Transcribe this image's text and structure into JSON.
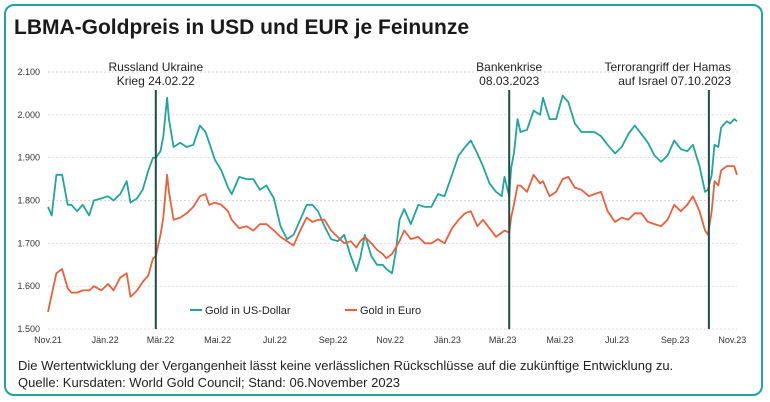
{
  "title": "LBMA-Goldpreis in USD und EUR je Feinunze",
  "footnote": "Die Wertentwicklung der Vergangenheit lässt keine verlässlichen Rückschlüsse auf die zukünftige Entwicklung zu.",
  "source": "Quelle: Kursdaten: World Gold Council; Stand: 06.November 2023",
  "colors": {
    "border": "#1fa59b",
    "usd": "#1fa59b",
    "eur": "#e8603c",
    "event_line": "#1e4d44",
    "grid": "#cccccc"
  },
  "chart_data": {
    "type": "line",
    "title": "LBMA-Goldpreis in USD und EUR je Feinunze",
    "xlabel": "",
    "ylabel": "",
    "ylim": [
      1500,
      2100
    ],
    "yticks": [
      "1.500",
      "1.600",
      "1.700",
      "1.800",
      "1.900",
      "2.000",
      "2.100"
    ],
    "ytick_values": [
      1500,
      1600,
      1700,
      1800,
      1900,
      2000,
      2100
    ],
    "xlim": [
      "2021-11-01",
      "2023-11-06"
    ],
    "xticks": [
      "Nov.21",
      "Jän.22",
      "Mär.22",
      "Mai.22",
      "Jul.22",
      "Sep.22",
      "Nov.22",
      "Jän.23",
      "Mär.23",
      "Mai.23",
      "Jul.23",
      "Sep.23",
      "Nov.23"
    ],
    "xtick_dates": [
      "2021-11-01",
      "2022-01-01",
      "2022-03-01",
      "2022-05-01",
      "2022-07-01",
      "2022-09-01",
      "2022-11-01",
      "2023-01-01",
      "2023-03-01",
      "2023-05-01",
      "2023-07-01",
      "2023-09-01",
      "2023-11-01"
    ],
    "grid": "horizontal",
    "legend": "bottom-center",
    "events": [
      {
        "date": "2022-02-24",
        "label_line1": "Russland Ukraine",
        "label_line2": "Krieg 24.02.22",
        "align": "center"
      },
      {
        "date": "2023-03-08",
        "label_line1": "Bankenkrise",
        "label_line2": "08.03.2023",
        "align": "center"
      },
      {
        "date": "2023-10-07",
        "label_line1": "Terrorangriff der Hamas",
        "label_line2": "auf Israel 07.10.2023",
        "align": "end"
      }
    ],
    "series": [
      {
        "name": "Gold in US-Dollar",
        "x": [
          "2021-11-01",
          "2021-11-05",
          "2021-11-10",
          "2021-11-16",
          "2021-11-22",
          "2021-11-26",
          "2021-12-02",
          "2021-12-08",
          "2021-12-15",
          "2021-12-20",
          "2021-12-28",
          "2022-01-04",
          "2022-01-10",
          "2022-01-17",
          "2022-01-24",
          "2022-01-28",
          "2022-02-04",
          "2022-02-10",
          "2022-02-16",
          "2022-02-21",
          "2022-02-24",
          "2022-03-01",
          "2022-03-04",
          "2022-03-08",
          "2022-03-10",
          "2022-03-15",
          "2022-03-22",
          "2022-03-29",
          "2022-04-05",
          "2022-04-12",
          "2022-04-18",
          "2022-04-22",
          "2022-04-28",
          "2022-05-05",
          "2022-05-12",
          "2022-05-16",
          "2022-05-24",
          "2022-06-01",
          "2022-06-08",
          "2022-06-15",
          "2022-06-22",
          "2022-06-30",
          "2022-07-07",
          "2022-07-14",
          "2022-07-21",
          "2022-07-28",
          "2022-08-04",
          "2022-08-10",
          "2022-08-16",
          "2022-08-23",
          "2022-08-30",
          "2022-09-06",
          "2022-09-13",
          "2022-09-20",
          "2022-09-26",
          "2022-09-30",
          "2022-10-05",
          "2022-10-12",
          "2022-10-18",
          "2022-10-24",
          "2022-10-28",
          "2022-11-03",
          "2022-11-07",
          "2022-11-11",
          "2022-11-16",
          "2022-11-23",
          "2022-12-01",
          "2022-12-08",
          "2022-12-15",
          "2022-12-22",
          "2022-12-29",
          "2023-01-06",
          "2023-01-13",
          "2023-01-20",
          "2023-01-26",
          "2023-02-02",
          "2023-02-08",
          "2023-02-15",
          "2023-02-22",
          "2023-02-28",
          "2023-03-03",
          "2023-03-08",
          "2023-03-10",
          "2023-03-13",
          "2023-03-17",
          "2023-03-20",
          "2023-03-27",
          "2023-04-03",
          "2023-04-10",
          "2023-04-13",
          "2023-04-20",
          "2023-04-27",
          "2023-05-04",
          "2023-05-10",
          "2023-05-17",
          "2023-05-24",
          "2023-06-01",
          "2023-06-07",
          "2023-06-14",
          "2023-06-21",
          "2023-06-29",
          "2023-07-06",
          "2023-07-13",
          "2023-07-20",
          "2023-07-27",
          "2023-08-03",
          "2023-08-10",
          "2023-08-17",
          "2023-08-24",
          "2023-08-31",
          "2023-09-07",
          "2023-09-14",
          "2023-09-20",
          "2023-09-27",
          "2023-10-03",
          "2023-10-06",
          "2023-10-10",
          "2023-10-13",
          "2023-10-17",
          "2023-10-20",
          "2023-10-26",
          "2023-10-30",
          "2023-11-03",
          "2023-11-06"
        ],
        "values": [
          1785,
          1765,
          1860,
          1860,
          1790,
          1790,
          1775,
          1790,
          1765,
          1800,
          1805,
          1810,
          1800,
          1815,
          1845,
          1795,
          1805,
          1825,
          1870,
          1900,
          1900,
          1915,
          1950,
          2040,
          1990,
          1925,
          1935,
          1925,
          1930,
          1975,
          1960,
          1935,
          1895,
          1870,
          1830,
          1815,
          1855,
          1850,
          1850,
          1825,
          1835,
          1805,
          1740,
          1710,
          1720,
          1755,
          1790,
          1790,
          1775,
          1740,
          1710,
          1705,
          1720,
          1670,
          1635,
          1665,
          1720,
          1670,
          1650,
          1650,
          1640,
          1630,
          1680,
          1755,
          1780,
          1745,
          1790,
          1785,
          1785,
          1815,
          1810,
          1860,
          1905,
          1925,
          1940,
          1910,
          1880,
          1840,
          1820,
          1810,
          1855,
          1810,
          1875,
          1910,
          1990,
          1960,
          1965,
          2010,
          2000,
          2040,
          1990,
          1990,
          2045,
          2030,
          1980,
          1960,
          1960,
          1960,
          1950,
          1930,
          1910,
          1925,
          1955,
          1975,
          1955,
          1935,
          1905,
          1890,
          1905,
          1940,
          1920,
          1915,
          1930,
          1880,
          1820,
          1825,
          1860,
          1930,
          1925,
          1970,
          1985,
          1980,
          1990,
          1985
        ]
      },
      {
        "name": "Gold in Euro",
        "x": [
          "2021-11-01",
          "2021-11-05",
          "2021-11-10",
          "2021-11-16",
          "2021-11-22",
          "2021-11-26",
          "2021-12-02",
          "2021-12-08",
          "2021-12-15",
          "2021-12-20",
          "2021-12-28",
          "2022-01-04",
          "2022-01-10",
          "2022-01-17",
          "2022-01-24",
          "2022-01-28",
          "2022-02-04",
          "2022-02-10",
          "2022-02-16",
          "2022-02-21",
          "2022-02-24",
          "2022-03-01",
          "2022-03-04",
          "2022-03-08",
          "2022-03-10",
          "2022-03-15",
          "2022-03-22",
          "2022-03-29",
          "2022-04-05",
          "2022-04-12",
          "2022-04-18",
          "2022-04-22",
          "2022-04-28",
          "2022-05-05",
          "2022-05-12",
          "2022-05-16",
          "2022-05-24",
          "2022-06-01",
          "2022-06-08",
          "2022-06-15",
          "2022-06-22",
          "2022-06-30",
          "2022-07-07",
          "2022-07-14",
          "2022-07-21",
          "2022-07-28",
          "2022-08-04",
          "2022-08-10",
          "2022-08-16",
          "2022-08-23",
          "2022-08-30",
          "2022-09-06",
          "2022-09-13",
          "2022-09-20",
          "2022-09-26",
          "2022-09-30",
          "2022-10-05",
          "2022-10-12",
          "2022-10-18",
          "2022-10-24",
          "2022-10-28",
          "2022-11-03",
          "2022-11-07",
          "2022-11-11",
          "2022-11-16",
          "2022-11-23",
          "2022-12-01",
          "2022-12-08",
          "2022-12-15",
          "2022-12-22",
          "2022-12-29",
          "2023-01-06",
          "2023-01-13",
          "2023-01-20",
          "2023-01-26",
          "2023-02-02",
          "2023-02-08",
          "2023-02-15",
          "2023-02-22",
          "2023-02-28",
          "2023-03-03",
          "2023-03-08",
          "2023-03-10",
          "2023-03-13",
          "2023-03-17",
          "2023-03-20",
          "2023-03-27",
          "2023-04-03",
          "2023-04-10",
          "2023-04-13",
          "2023-04-20",
          "2023-04-27",
          "2023-05-04",
          "2023-05-10",
          "2023-05-17",
          "2023-05-24",
          "2023-06-01",
          "2023-06-07",
          "2023-06-14",
          "2023-06-21",
          "2023-06-29",
          "2023-07-06",
          "2023-07-13",
          "2023-07-20",
          "2023-07-27",
          "2023-08-03",
          "2023-08-10",
          "2023-08-17",
          "2023-08-24",
          "2023-08-31",
          "2023-09-07",
          "2023-09-14",
          "2023-09-20",
          "2023-09-27",
          "2023-10-03",
          "2023-10-06",
          "2023-10-10",
          "2023-10-13",
          "2023-10-17",
          "2023-10-20",
          "2023-10-26",
          "2023-10-30",
          "2023-11-03",
          "2023-11-06"
        ],
        "values": [
          1540,
          1580,
          1630,
          1640,
          1595,
          1585,
          1585,
          1590,
          1590,
          1600,
          1590,
          1605,
          1590,
          1620,
          1630,
          1575,
          1590,
          1610,
          1625,
          1665,
          1670,
          1720,
          1760,
          1860,
          1820,
          1755,
          1760,
          1770,
          1785,
          1810,
          1815,
          1790,
          1795,
          1790,
          1775,
          1755,
          1735,
          1740,
          1730,
          1745,
          1745,
          1730,
          1715,
          1705,
          1695,
          1730,
          1760,
          1750,
          1755,
          1755,
          1730,
          1715,
          1700,
          1705,
          1690,
          1705,
          1715,
          1700,
          1685,
          1675,
          1665,
          1675,
          1690,
          1705,
          1730,
          1710,
          1715,
          1700,
          1700,
          1710,
          1700,
          1735,
          1755,
          1770,
          1775,
          1740,
          1755,
          1735,
          1715,
          1725,
          1730,
          1725,
          1760,
          1790,
          1835,
          1835,
          1820,
          1860,
          1840,
          1845,
          1810,
          1820,
          1850,
          1855,
          1830,
          1825,
          1810,
          1815,
          1820,
          1775,
          1750,
          1760,
          1755,
          1770,
          1770,
          1750,
          1745,
          1740,
          1755,
          1790,
          1775,
          1790,
          1810,
          1775,
          1730,
          1720,
          1775,
          1845,
          1835,
          1870,
          1880,
          1880,
          1880,
          1860
        ]
      }
    ]
  }
}
